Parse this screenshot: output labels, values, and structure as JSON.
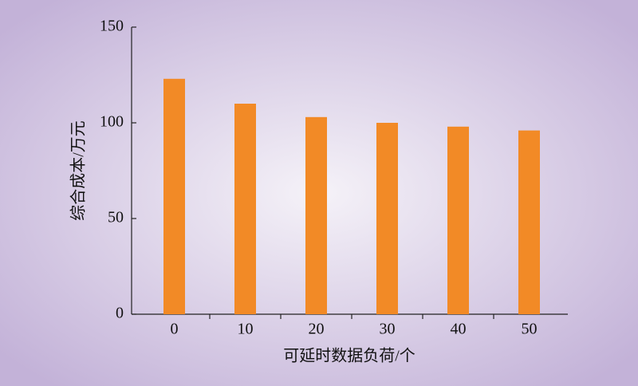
{
  "chart_data": {
    "type": "bar",
    "x_label": "可延时数据负荷/个",
    "y_label": "综合成本/万元",
    "categories": [
      "0",
      "10",
      "20",
      "30",
      "40",
      "50"
    ],
    "values": [
      123,
      110,
      103,
      100,
      98,
      96
    ],
    "color": "#f28a26",
    "ylim": [
      0,
      150
    ],
    "yticks": [
      0,
      50,
      100,
      150
    ]
  }
}
